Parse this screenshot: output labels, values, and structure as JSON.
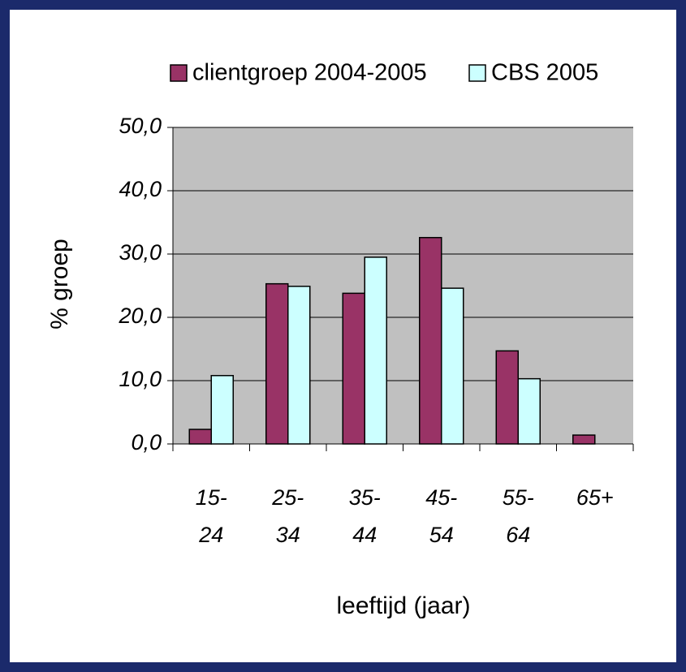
{
  "chart_data": {
    "type": "bar",
    "categories": [
      "15-24",
      "25-34",
      "35-44",
      "45-54",
      "55-64",
      "65+"
    ],
    "series": [
      {
        "name": "clientgroep 2004-2005",
        "color": "#993366",
        "values": [
          2.3,
          25.3,
          23.8,
          32.6,
          14.7,
          1.4
        ]
      },
      {
        "name": "CBS 2005",
        "color": "#ccffff",
        "values": [
          10.8,
          24.9,
          29.5,
          24.6,
          10.3,
          null
        ]
      }
    ],
    "ylim": [
      0,
      50
    ],
    "yticks": [
      {
        "value": 0,
        "label": "0,0"
      },
      {
        "value": 10,
        "label": "10,0"
      },
      {
        "value": 20,
        "label": "20,0"
      },
      {
        "value": 30,
        "label": "30,0"
      },
      {
        "value": 40,
        "label": "40,0"
      },
      {
        "value": 50,
        "label": "50,0"
      }
    ],
    "y_label": "% groep",
    "x_label": "leeftijd (jaar)",
    "grid": true,
    "legend": "top"
  }
}
